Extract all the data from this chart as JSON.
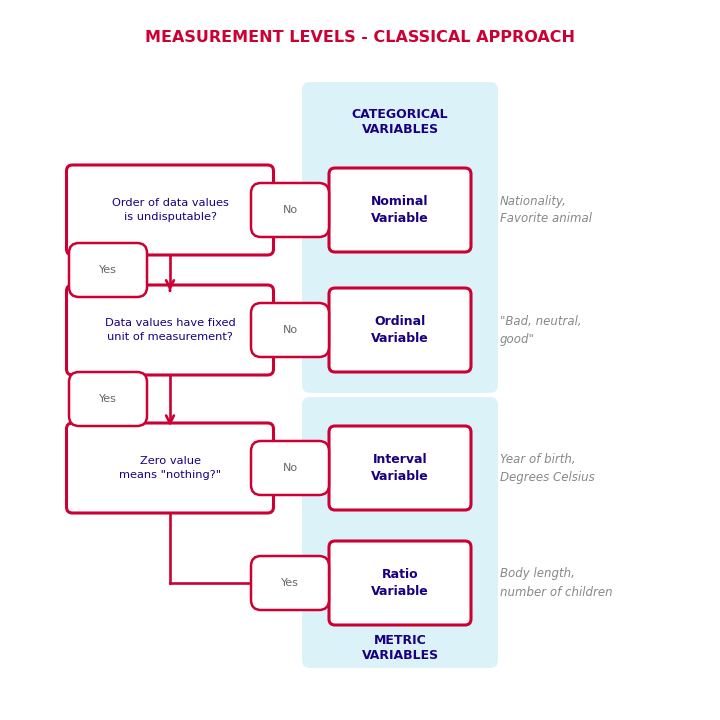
{
  "title": "MEASUREMENT LEVELS - CLASSICAL APPROACH",
  "title_color": "#CC0033",
  "title_fontsize": 11.5,
  "bg_color": "#FFFFFF",
  "panel_color": "#DCF2F9",
  "box_border_color": "#CC0033",
  "box_text_color": "#1A0080",
  "arrow_color": "#CC0033",
  "yes_no_text_color": "#666666",
  "example_text_color": "#888888",
  "cat_label_color": "#1A0080",
  "metric_label_color": "#1A0080",
  "cat_label": "CATEGORICAL\nVARIABLES",
  "metric_label": "METRIC\nVARIABLES",
  "q1_text": "Order of data values\nis undisputable?",
  "q2_text": "Data values have fixed\nunit of measurement?",
  "q3_text": "Zero value\nmeans \"nothing?\"",
  "r1_text": "Nominal\nVariable",
  "r2_text": "Ordinal\nVariable",
  "r3_text": "Interval\nVariable",
  "r4_text": "Ratio\nVariable",
  "ex1_text": "Nationality,\nFavorite animal",
  "ex2_text": "\"Bad, neutral,\ngood\"",
  "ex3_text": "Year of birth,\nDegrees Celsius",
  "ex4_text": "Body length,\nnumber of children"
}
